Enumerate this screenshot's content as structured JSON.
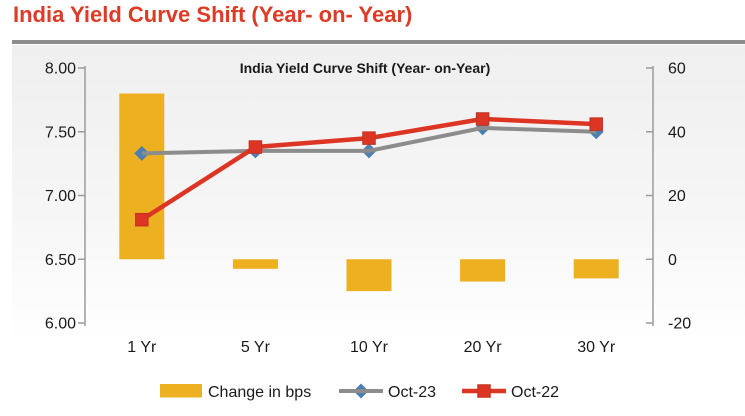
{
  "page": {
    "title": "India Yield Curve Shift (Year- on- Year)",
    "title_color": "#DE3B26",
    "divider_color": "#8C8C8C"
  },
  "chart_data": {
    "type": "bar",
    "subtype": "combo-bar-line-dual-axis",
    "title": "India Yield Curve Shift (Year- on-Year)",
    "categories": [
      "1 Yr",
      "5 Yr",
      "10 Yr",
      "20 Yr",
      "30 Yr"
    ],
    "left_axis": {
      "min": 6.0,
      "max": 8.0,
      "ticks": [
        "8.00",
        "7.50",
        "7.00",
        "6.50",
        "6.00"
      ]
    },
    "right_axis": {
      "min": -20,
      "max": 60,
      "ticks": [
        "60",
        "40",
        "20",
        "0",
        "-20"
      ]
    },
    "bar_series": {
      "name": "Change in bps",
      "axis": "right",
      "color": "#EDB021",
      "values": [
        52,
        -3,
        -10,
        -7,
        -6
      ]
    },
    "line_series": [
      {
        "name": "Oct-23",
        "axis": "left",
        "color": "#8C8C8C",
        "marker": "diamond",
        "marker_color": "#4E7FB1",
        "values": [
          7.33,
          7.35,
          7.35,
          7.53,
          7.5
        ]
      },
      {
        "name": "Oct-22",
        "axis": "left",
        "color": "#DD3524",
        "marker": "square",
        "marker_color": "#DD3524",
        "marker_border": "#C03122",
        "values": [
          6.81,
          7.38,
          7.45,
          7.6,
          7.56
        ]
      }
    ],
    "legend_position": "bottom",
    "grid": false,
    "axis_color": "#9B9B9B",
    "text_color": "#1A1A1A"
  }
}
